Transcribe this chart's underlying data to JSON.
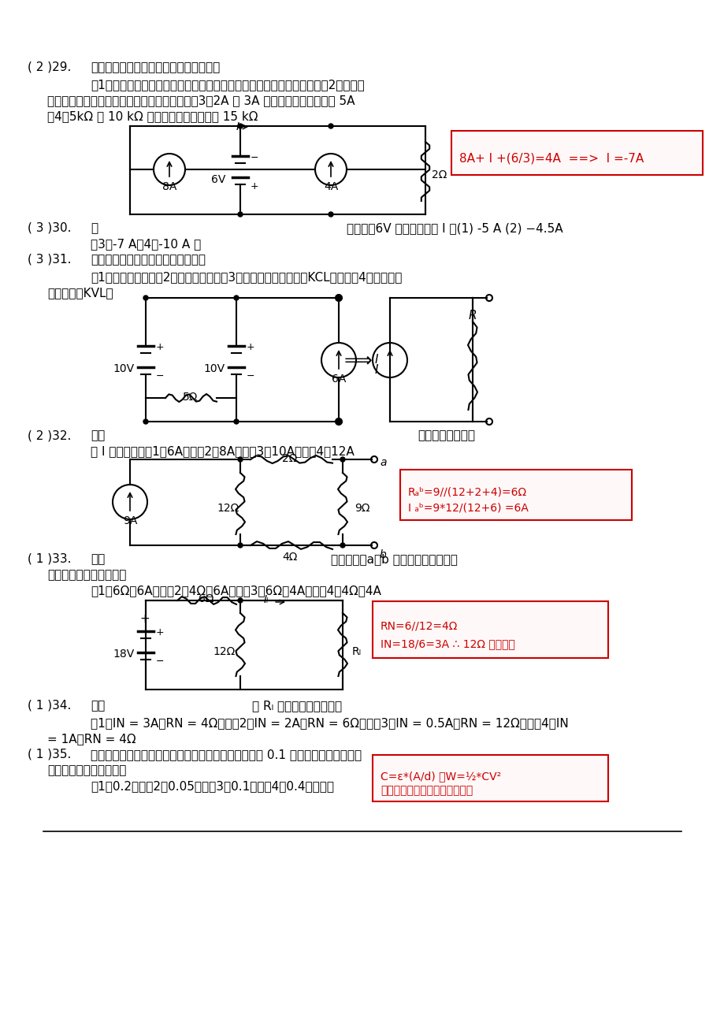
{
  "background": "#ffffff",
  "q29_text1": "( 2 )29.",
  "q29_text2": "下列有關電路之敍述，何者為正確敍述？",
  "q29_text3": "（1）平面上任繪一圓圈，則流入該圓圈之電荷必比流出之電荷較少　　（2）理想電",
  "q29_text4": "流源之流出電流為固定値與其端電壓無關　　（3）2A 與 3A 之電流串聯，總電流為 5A",
  "q29_text5": "（4）5kΩ 與 10 kΩ 並聯後其等效電阻値為 15 kΩ",
  "q30_text1": "( 3 )30.",
  "q30_text2": "圖",
  "q30_text3": "中，流紹6V 電壓源之電流 I 為(1) -5 A (2) −4.5A",
  "q30_text4": "（3）-7 A（4）-10 A 。",
  "q31_text1": "( 3 )31.",
  "q31_text2": "用節點電壓法分析電路，乃是依據：",
  "q31_text3": "（1）歐姆定律　　（2）焦耳定理　　（3）克希荷夫電流定律（KCL）　　（4）克希荷夫",
  "q31_text4": "電壓定律（KVL）",
  "q32_text1": "( 2 )32.",
  "q32_text2": "如圖",
  "q32_text3": "所示為等效電路，",
  "q32_text4": "則 I 之値為　　（1）6A　　（2）8A　　（3）10A　　（4）12A",
  "q33_text1": "( 1 )33.",
  "q33_text2": "如圖",
  "q33_text3": "所示電路，a、b 兩端間的諾頑等效電",
  "q33_text4": "阻與諾頑等效電流分別為",
  "q33_text5": "（1）6Ω、6A　　（2）4Ω、6A　　（3）6Ω、4A　　（4）4Ω、4A",
  "q34_text1": "( 1 )34.",
  "q34_text2": "求圖",
  "q34_text3": "中 Rₗ 兩端的諾頑等效電路",
  "q34_text4": "（1）IN = 3A，RN = 4Ω　　（2）IN = 2A，RN = 6Ω　　（3）IN = 0.5A，RN = 12Ω　　（4）IN",
  "q34_text5": "= 1A，RN = 4Ω",
  "q35_text1": "( 1 )35.",
  "q35_text2": "一平行板電容器接於一直流固定電源，所儲存之能量為 0.1 焦耳，若將兩極板距離",
  "q35_text3": "減半，則所儲存之能量為",
  "q35_text4": "（1）0.2　　（2）0.05　　（3）0.1　　（4）0.4　　焦耳",
  "ans1_text": "8A+ I +(6/3)=4A  ==>  I =-7A",
  "ans2_line1": "Rₐᵇ=9∕∕(12+2+4)=6Ω",
  "ans2_line2": "I ₐᵇ=9*12/(12+6) =6A",
  "ans3_line1": "RN=6//12=4Ω",
  "ans3_line2": "IN=18/6=3A ∴ 12Ω 已被短路",
  "ans4_line1": "C=ε*(A/d) ，W=½*CV²",
  "ans4_line2": "距離減半，則所儲存之能量加倍"
}
